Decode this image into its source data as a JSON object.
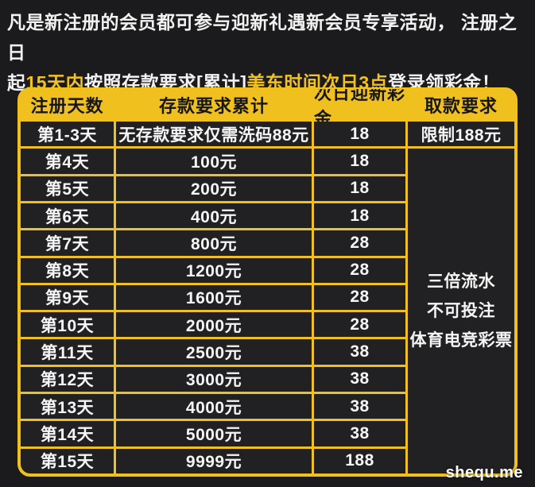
{
  "promo": {
    "segments": [
      "凡是新注册的会员都可参与迎新礼遇新会员专享活动， 注册之日",
      "起",
      "15天内",
      "按照存款要求[累计]",
      "美东时间次日3点",
      "登录领彩金！"
    ]
  },
  "colors": {
    "accent_yellow": "#f0c01e",
    "page_bg": "#1b1b1d",
    "cell_bg": "#212123",
    "text_white": "#f5f5f5"
  },
  "table": {
    "columns": [
      "注册天数",
      "存款要求累计",
      "次日迎新彩金",
      "取款要求"
    ],
    "rows": [
      {
        "day": "第1-3天",
        "deposit": "无存款要求仅需洗码88元",
        "bonus": "18",
        "withdrawal": "限制188元"
      },
      {
        "day": "第4天",
        "deposit": "100元",
        "bonus": "18"
      },
      {
        "day": "第5天",
        "deposit": "200元",
        "bonus": "18"
      },
      {
        "day": "第6天",
        "deposit": "400元",
        "bonus": "18"
      },
      {
        "day": "第7天",
        "deposit": "800元",
        "bonus": "28"
      },
      {
        "day": "第8天",
        "deposit": "1200元",
        "bonus": "28"
      },
      {
        "day": "第9天",
        "deposit": "1600元",
        "bonus": "28"
      },
      {
        "day": "第10天",
        "deposit": "2000元",
        "bonus": "28"
      },
      {
        "day": "第11天",
        "deposit": "2500元",
        "bonus": "38"
      },
      {
        "day": "第12天",
        "deposit": "3000元",
        "bonus": "38"
      },
      {
        "day": "第13天",
        "deposit": "4000元",
        "bonus": "38"
      },
      {
        "day": "第14天",
        "deposit": "5000元",
        "bonus": "38"
      },
      {
        "day": "第15天",
        "deposit": "9999元",
        "bonus": "188"
      }
    ],
    "withdrawal_note": [
      "三倍流水",
      "不可投注",
      "体育电竞彩票"
    ]
  },
  "watermark": "shequ.me"
}
